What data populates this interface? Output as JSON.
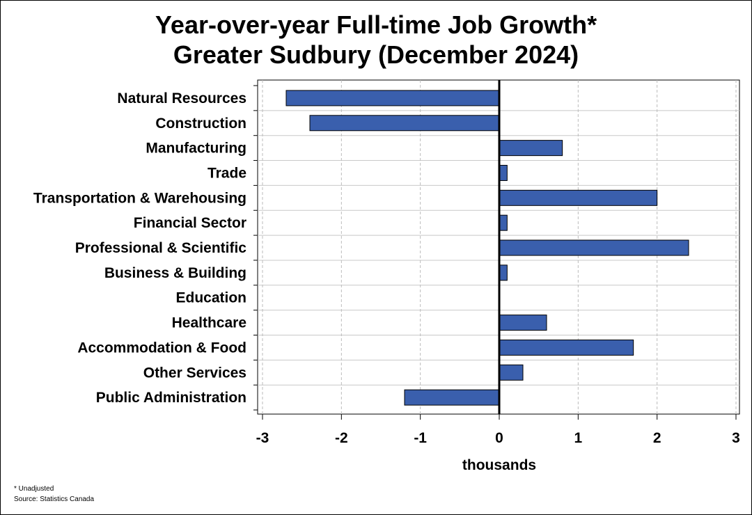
{
  "chart_data": {
    "type": "bar",
    "orientation": "horizontal",
    "title_line1": "Year-over-year Full-time Job Growth*",
    "title_line2": "Greater Sudbury (December 2024)",
    "xlabel": "thousands",
    "ylabel": "",
    "xlim": [
      -3,
      3
    ],
    "xticks": [
      -3,
      -2,
      -1,
      0,
      1,
      2,
      3
    ],
    "grid": true,
    "bar_color": "#3a5fad",
    "categories": [
      "Natural Resources",
      "Construction",
      "Manufacturing",
      "Trade",
      "Transportation & Warehousing",
      "Financial Sector",
      "Professional & Scientific",
      "Business & Building",
      "Education",
      "Healthcare",
      "Accommodation & Food",
      "Other Services",
      "Public Administration"
    ],
    "values": [
      -2.7,
      -2.4,
      0.8,
      0.1,
      2.0,
      0.1,
      2.4,
      0.1,
      0.0,
      0.6,
      1.7,
      0.3,
      -1.2
    ]
  },
  "footnotes": {
    "note": "* Unadjusted",
    "source": "Source: Statistics Canada"
  }
}
